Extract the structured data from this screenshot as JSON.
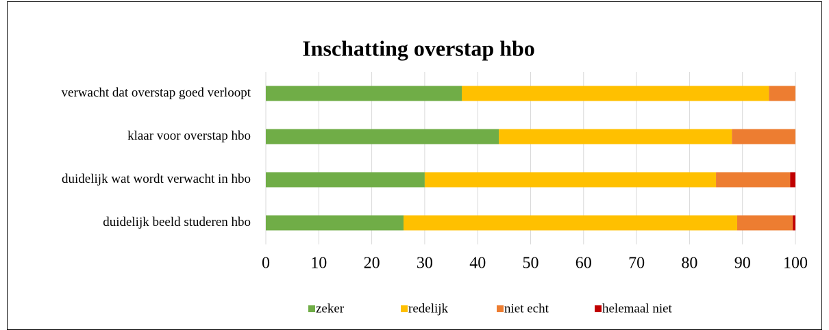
{
  "chart_data": {
    "type": "bar",
    "orientation": "horizontal",
    "stacked": true,
    "title": "Inschatting overstap hbo",
    "categories": [
      "verwacht dat overstap goed verloopt",
      "klaar voor overstap hbo",
      "duidelijk wat wordt verwacht in hbo",
      "duidelijk beeld studeren hbo"
    ],
    "series": [
      {
        "name": "zeker",
        "color": "#70ad47",
        "values": [
          37,
          44,
          30,
          26
        ]
      },
      {
        "name": "redelijk",
        "color": "#ffc000",
        "values": [
          58,
          44,
          55,
          63
        ]
      },
      {
        "name": "niet echt",
        "color": "#ed7d31",
        "values": [
          5,
          12,
          14,
          10.5
        ]
      },
      {
        "name": "helemaal niet",
        "color": "#c00000",
        "values": [
          0,
          0,
          1,
          0.5
        ]
      }
    ],
    "xlim": [
      0,
      100
    ],
    "xticks": [
      0,
      10,
      20,
      30,
      40,
      50,
      60,
      70,
      80,
      90,
      100
    ],
    "grid": true,
    "legend": "bottom"
  }
}
